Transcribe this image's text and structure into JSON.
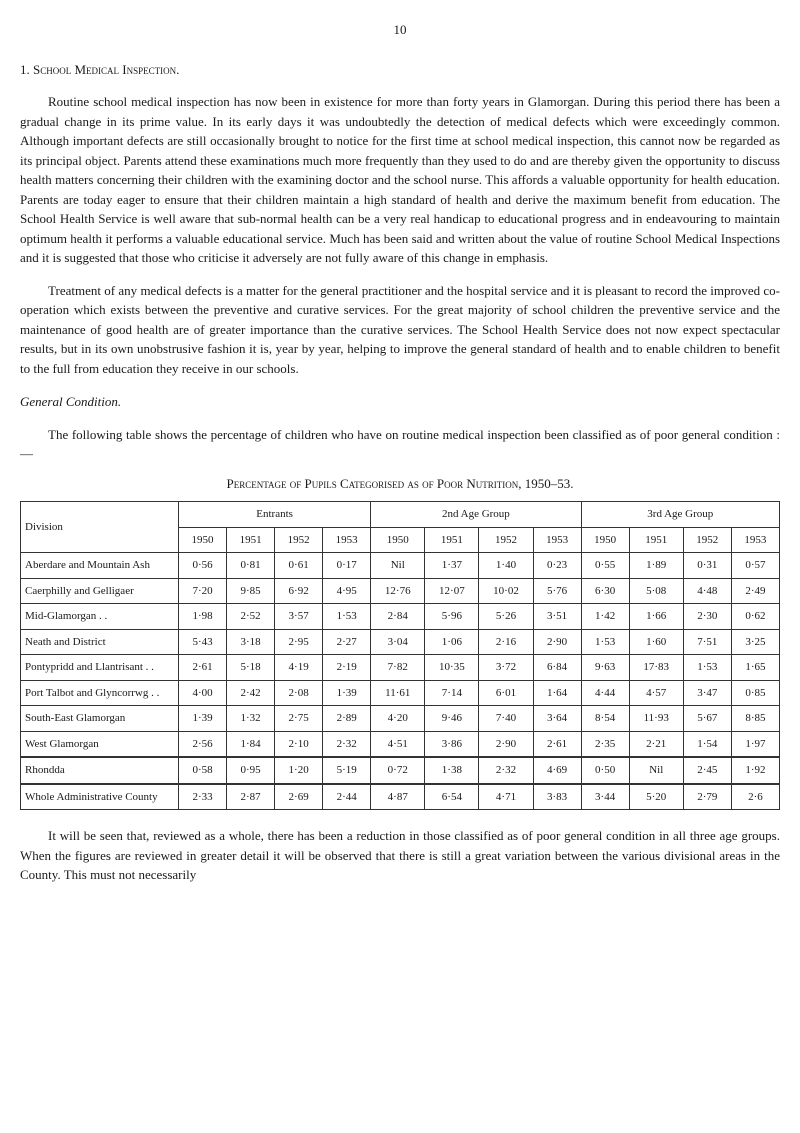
{
  "page_number": "10",
  "section_number": "1.",
  "section_title": "School Medical Inspection.",
  "para1": "Routine school medical inspection has now been in existence for more than forty years in Glamorgan. During this period there has been a gradual change in its prime value. In its early days it was undoubtedly the detection of medical defects which were exceedingly common. Although important defects are still occasionally brought to notice for the first time at school medical inspection, this cannot now be regarded as its principal object. Parents attend these examinations much more frequently than they used to do and are thereby given the opportunity to discuss health matters concerning their children with the examining doctor and the school nurse. This affords a valuable opportunity for health education. Parents are today eager to ensure that their children maintain a high standard of health and derive the maximum benefit from education. The School Health Service is well aware that sub-normal health can be a very real handicap to educational progress and in endeavouring to maintain optimum health it performs a valuable educational service. Much has been said and written about the value of routine School Medical Inspections and it is suggested that those who criticise it adversely are not fully aware of this change in emphasis.",
  "para2": "Treatment of any medical defects is a matter for the general practitioner and the hospital service and it is pleasant to record the improved co-operation which exists between the preventive and curative services. For the great majority of school children the preventive service and the maintenance of good health are of greater importance than the curative services. The School Health Service does not now expect spectacular results, but in its own unobstrusive fashion it is, year by year, helping to improve the general standard of health and to enable children to benefit to the full from education they receive in our schools.",
  "subheading": "General Condition.",
  "para3": "The following table shows the percentage of children who have on routine medical inspection been classified as of poor general condition :—",
  "table_title": "Percentage of Pupils Categorised as of Poor Nutrition, 1950–53.",
  "table": {
    "division_header": "Division",
    "groups": [
      "Entrants",
      "2nd Age Group",
      "3rd Age Group"
    ],
    "years": [
      "1950",
      "1951",
      "1952",
      "1953",
      "1950",
      "1951",
      "1952",
      "1953",
      "1950",
      "1951",
      "1952",
      "1953"
    ],
    "rows": [
      {
        "label": "Aberdare and Mountain Ash",
        "vals": [
          "0·56",
          "0·81",
          "0·61",
          "0·17",
          "Nil",
          "1·37",
          "1·40",
          "0·23",
          "0·55",
          "1·89",
          "0·31",
          "0·57"
        ]
      },
      {
        "label": "Caerphilly and Gelligaer",
        "vals": [
          "7·20",
          "9·85",
          "6·92",
          "4·95",
          "12·76",
          "12·07",
          "10·02",
          "5·76",
          "6·30",
          "5·08",
          "4·48",
          "2·49"
        ]
      },
      {
        "label": "Mid-Glamorgan . .",
        "vals": [
          "1·98",
          "2·52",
          "3·57",
          "1·53",
          "2·84",
          "5·96",
          "5·26",
          "3·51",
          "1·42",
          "1·66",
          "2·30",
          "0·62"
        ]
      },
      {
        "label": "Neath and District",
        "vals": [
          "5·43",
          "3·18",
          "2·95",
          "2·27",
          "3·04",
          "1·06",
          "2·16",
          "2·90",
          "1·53",
          "1·60",
          "7·51",
          "3·25"
        ]
      },
      {
        "label": "Pontypridd and Llantrisant . .",
        "vals": [
          "2·61",
          "5·18",
          "4·19",
          "2·19",
          "7·82",
          "10·35",
          "3·72",
          "6·84",
          "9·63",
          "17·83",
          "1·53",
          "1·65"
        ]
      },
      {
        "label": "Port Talbot and Glyncorrwg . .",
        "vals": [
          "4·00",
          "2·42",
          "2·08",
          "1·39",
          "11·61",
          "7·14",
          "6·01",
          "1·64",
          "4·44",
          "4·57",
          "3·47",
          "0·85"
        ]
      },
      {
        "label": "South-East Glamorgan",
        "vals": [
          "1·39",
          "1·32",
          "2·75",
          "2·89",
          "4·20",
          "9·46",
          "7·40",
          "3·64",
          "8·54",
          "11·93",
          "5·67",
          "8·85"
        ]
      },
      {
        "label": "West Glamorgan",
        "vals": [
          "2·56",
          "1·84",
          "2·10",
          "2·32",
          "4·51",
          "3·86",
          "2·90",
          "2·61",
          "2·35",
          "2·21",
          "1·54",
          "1·97"
        ]
      }
    ],
    "rhondda": {
      "label": "Rhondda",
      "vals": [
        "0·58",
        "0·95",
        "1·20",
        "5·19",
        "0·72",
        "1·38",
        "2·32",
        "4·69",
        "0·50",
        "Nil",
        "2·45",
        "1·92"
      ]
    },
    "total": {
      "label": "Whole Administrative County",
      "vals": [
        "2·33",
        "2·87",
        "2·69",
        "2·44",
        "4·87",
        "6·54",
        "4·71",
        "3·83",
        "3·44",
        "5·20",
        "2·79",
        "2·6"
      ]
    }
  },
  "footnote": "It will be seen that, reviewed as a whole, there has been a reduction in those classified as of poor general condition in all three age groups. When the figures are reviewed in greater detail it will be observed that there is still a great variation between the various divisional areas in the County. This must not necessarily"
}
